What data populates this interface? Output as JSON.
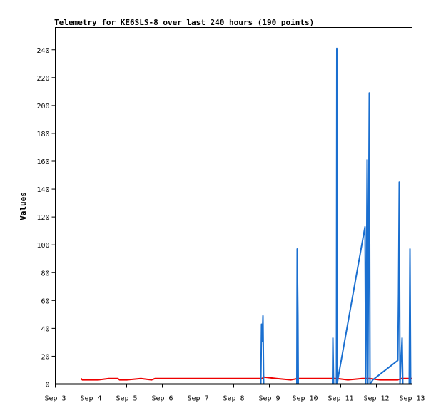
{
  "chart_data": {
    "type": "line",
    "title": "Telemetry for KE6SLS-8 over last 240 hours (190 points)",
    "xlabel": "",
    "ylabel": "Values",
    "x_ticks": [
      "Sep 3",
      "Sep 4",
      "Sep 5",
      "Sep 6",
      "Sep 7",
      "Sep 8",
      "Sep 9",
      "Sep 10",
      "Sep 11",
      "Sep 12",
      "Sep 13"
    ],
    "xlim": [
      3,
      13
    ],
    "ylim": [
      0,
      256
    ],
    "y_ticks": [
      0,
      20,
      40,
      60,
      80,
      100,
      120,
      140,
      160,
      180,
      200,
      220,
      240
    ],
    "grid": false,
    "series": [
      {
        "color": "#ee0000",
        "points": [
          [
            3.72,
            4
          ],
          [
            3.76,
            3
          ],
          [
            3.9,
            3
          ],
          [
            4.2,
            3
          ],
          [
            4.5,
            4
          ],
          [
            4.75,
            4
          ],
          [
            4.8,
            3
          ],
          [
            5.0,
            3
          ],
          [
            5.4,
            4
          ],
          [
            5.7,
            3
          ],
          [
            5.8,
            4
          ],
          [
            6.2,
            4
          ],
          [
            7.0,
            4
          ],
          [
            8.0,
            4
          ],
          [
            8.8,
            4
          ],
          [
            8.85,
            5
          ],
          [
            9.2,
            4
          ],
          [
            9.6,
            3
          ],
          [
            9.8,
            4
          ],
          [
            10.9,
            4
          ],
          [
            11.2,
            3
          ],
          [
            11.6,
            4
          ],
          [
            11.8,
            4
          ],
          [
            12.1,
            3
          ],
          [
            12.6,
            3
          ],
          [
            12.7,
            4
          ],
          [
            13.0,
            4
          ]
        ]
      },
      {
        "color": "#1a6fd0",
        "points": [
          [
            8.76,
            0
          ],
          [
            8.78,
            43
          ],
          [
            8.8,
            31
          ],
          [
            8.82,
            49
          ],
          [
            8.84,
            0
          ],
          [
            9.77,
            0
          ],
          [
            9.78,
            97
          ],
          [
            9.8,
            49
          ],
          [
            9.81,
            0
          ],
          [
            10.77,
            0
          ],
          [
            10.78,
            33
          ],
          [
            10.8,
            0
          ],
          [
            10.88,
            0
          ],
          [
            10.89,
            241
          ],
          [
            10.9,
            0
          ],
          [
            10.93,
            5
          ],
          [
            11.68,
            113
          ],
          [
            11.7,
            0
          ],
          [
            11.72,
            65
          ],
          [
            11.74,
            161
          ],
          [
            11.76,
            0
          ],
          [
            11.8,
            209
          ],
          [
            11.82,
            0
          ],
          [
            11.9,
            3
          ],
          [
            12.6,
            17
          ],
          [
            12.62,
            65
          ],
          [
            12.64,
            145
          ],
          [
            12.66,
            0
          ],
          [
            12.72,
            33
          ],
          [
            12.74,
            0
          ],
          [
            12.92,
            0
          ],
          [
            12.94,
            97
          ],
          [
            12.96,
            0
          ]
        ]
      }
    ]
  }
}
